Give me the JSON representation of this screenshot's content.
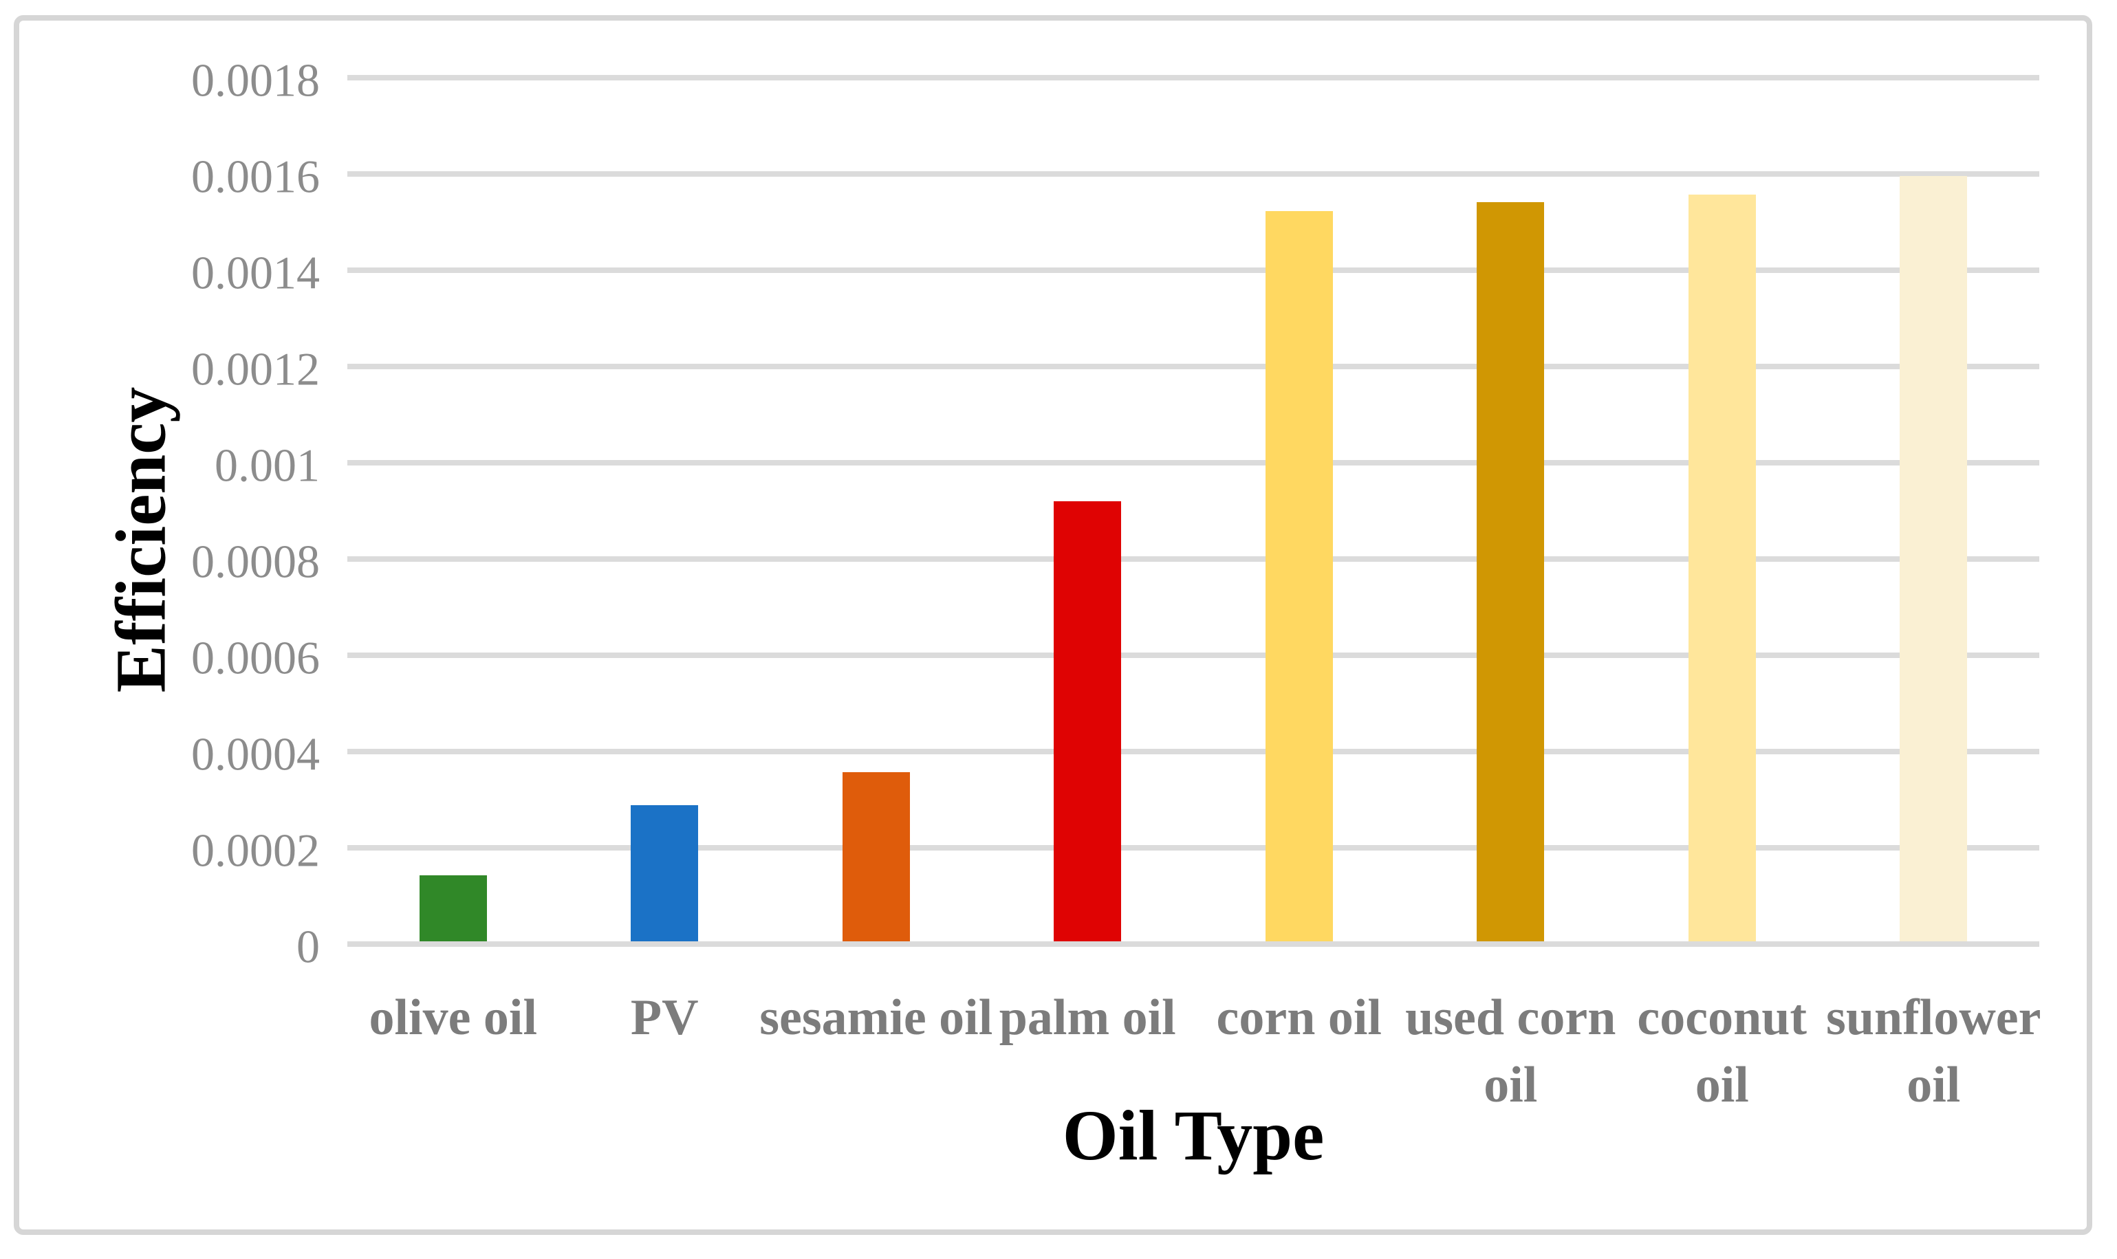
{
  "figure": {
    "y_axis_title": "Efficiency",
    "x_axis_title": "Oil Type"
  },
  "chart_data": {
    "type": "bar",
    "title": "",
    "xlabel": "Oil Type",
    "ylabel": "Efficiency",
    "categories": [
      "olive oil",
      "PV",
      "sesamie oil",
      "palm oil",
      "corn oil",
      "used corn oil",
      "coconut oil",
      "sunflower oil"
    ],
    "category_label_lines": [
      [
        "olive oil"
      ],
      [
        "PV"
      ],
      [
        "sesamie oil"
      ],
      [
        "palm oil"
      ],
      [
        "corn oil"
      ],
      [
        "used corn",
        "oil"
      ],
      [
        "coconut",
        "oil"
      ],
      [
        "sunflower",
        "oil"
      ]
    ],
    "values": [
      0.000143,
      0.000289,
      0.000357,
      0.00092,
      0.001523,
      0.001541,
      0.001557,
      0.001596
    ],
    "bar_colors": [
      "#308828",
      "#1B72C6",
      "#DF5C0B",
      "#DF0303",
      "#FFD861",
      "#D09703",
      "#FFE69B",
      "#FAF0D3"
    ],
    "ylim": [
      0,
      0.0018
    ],
    "ytick_step": 0.0002,
    "ytick_labels": [
      "0",
      "0.0002",
      "0.0004",
      "0.0006",
      "0.0008",
      "0.001",
      "0.0012",
      "0.0014",
      "0.0016",
      "0.0018"
    ],
    "grid": true,
    "legend": false,
    "colors": {
      "gridline": "#DBDBDB",
      "tick_label": "#8C8C8C",
      "category_label": "#7C7C7C",
      "axis_title": "#000000",
      "frame_border": "#D6D6D6",
      "background": "#FFFFFF"
    }
  }
}
